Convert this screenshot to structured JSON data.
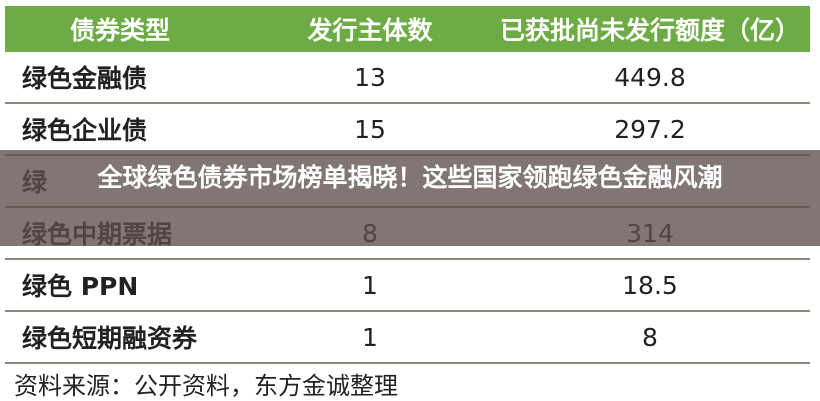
{
  "table": {
    "headers": [
      "债券类型",
      "发行主体数",
      "已获批尚未发行额度（亿）"
    ],
    "rows": [
      {
        "type": "绿色金融债",
        "issuers": "13",
        "quota": "449.8"
      },
      {
        "type": "绿色企业债",
        "issuers": "15",
        "quota": "297.2"
      },
      {
        "type": "绿",
        "issuers": "",
        "quota": ""
      },
      {
        "type": "绿色中期票据",
        "issuers": "8",
        "quota": "314"
      },
      {
        "type": "绿色 PPN",
        "issuers": "1",
        "quota": "18.5"
      },
      {
        "type": "绿色短期融资券",
        "issuers": "1",
        "quota": "8"
      }
    ],
    "header_color": "#6dab45"
  },
  "source": "资料来源：公开资料，东方金诚整理",
  "overlay_title": "全球绿色债券市场榜单揭晓！这些国家领跑绿色金融风潮"
}
